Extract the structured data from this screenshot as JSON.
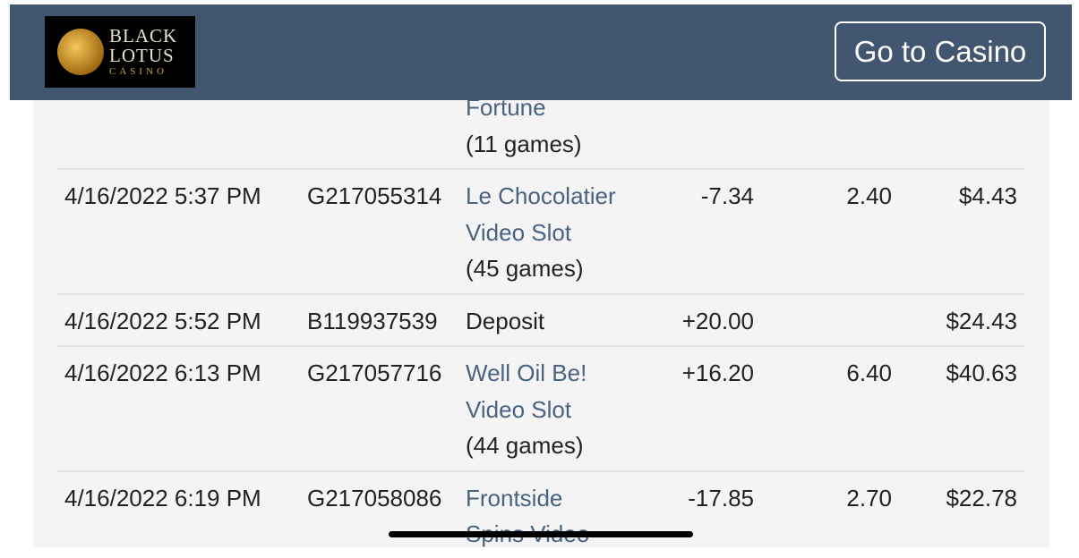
{
  "header": {
    "logo": [
      "BLACK",
      "LOTUS",
      "CASINO"
    ],
    "button": "Go to Casino"
  },
  "table": {
    "rows": [
      {
        "game": [
          "Fortune"
        ],
        "games": "(11 games)"
      },
      {
        "date": "4/16/2022 5:37 PM",
        "id": "G217055314",
        "game": [
          "Le Chocolatier",
          "Video Slot"
        ],
        "games": "(45 games)",
        "amount": "-7.34",
        "bet": "2.40",
        "balance": "$4.43"
      },
      {
        "date": "4/16/2022 5:52 PM",
        "id": "B119937539",
        "label": "Deposit",
        "amount": "+20.00",
        "balance": "$24.43"
      },
      {
        "date": "4/16/2022 6:13 PM",
        "id": "G217057716",
        "game": [
          "Well Oil Be!",
          "Video Slot"
        ],
        "games": "(44 games)",
        "amount": "+16.20",
        "bet": "6.40",
        "balance": "$40.63"
      },
      {
        "date": "4/16/2022 6:19 PM",
        "id": "G217058086",
        "game": [
          "Frontside",
          "Spins Video"
        ],
        "amount": "-17.85",
        "bet": "2.70",
        "balance": "$22.78"
      }
    ]
  }
}
